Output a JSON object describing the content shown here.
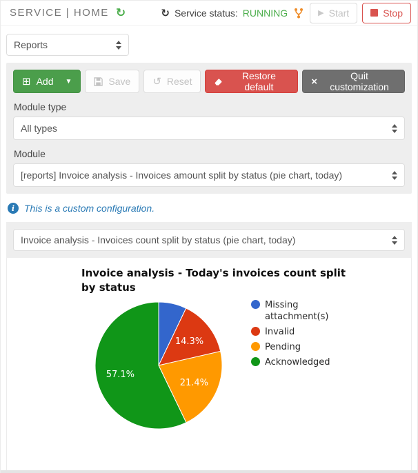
{
  "header": {
    "title": "SERVICE | HOME",
    "status_label": "Service status:",
    "status_value": "RUNNING",
    "start_label": "Start",
    "stop_label": "Stop"
  },
  "selects": {
    "reports": "Reports",
    "widget": "Invoice analysis - Invoices count split by status (pie chart, today)"
  },
  "toolbar": {
    "add": "Add",
    "save": "Save",
    "reset": "Reset",
    "restore": "Restore default",
    "quit": "Quit customization"
  },
  "form": {
    "module_type_label": "Module type",
    "module_type_value": "All types",
    "module_label": "Module",
    "module_value": "[reports] Invoice analysis - Invoices amount split by status (pie chart, today)"
  },
  "info": {
    "message": "This is a custom configuration."
  },
  "chart_data": {
    "type": "pie",
    "title": "Invoice analysis - Today's invoices count split by status",
    "categories": [
      "Missing attachment(s)",
      "Invalid",
      "Pending",
      "Acknowledged"
    ],
    "values": [
      7.1,
      14.3,
      21.4,
      57.1
    ],
    "colors": [
      "#3366cc",
      "#dc3912",
      "#ff9900",
      "#109618"
    ],
    "labels_shown": [
      "",
      "14.3%",
      "21.4%",
      "57.1%"
    ],
    "legend_position": "right",
    "unit": "percent",
    "start_angle_deg": 0,
    "direction": "clockwise"
  },
  "ui_colors": {
    "accent_green": "#4b9e4b",
    "danger_red": "#d9534f",
    "running_green": "#4cae4c",
    "info_blue": "#2a7ab5",
    "panel_gray": "#eeeeee",
    "fork_orange": "#ef8d2a"
  }
}
